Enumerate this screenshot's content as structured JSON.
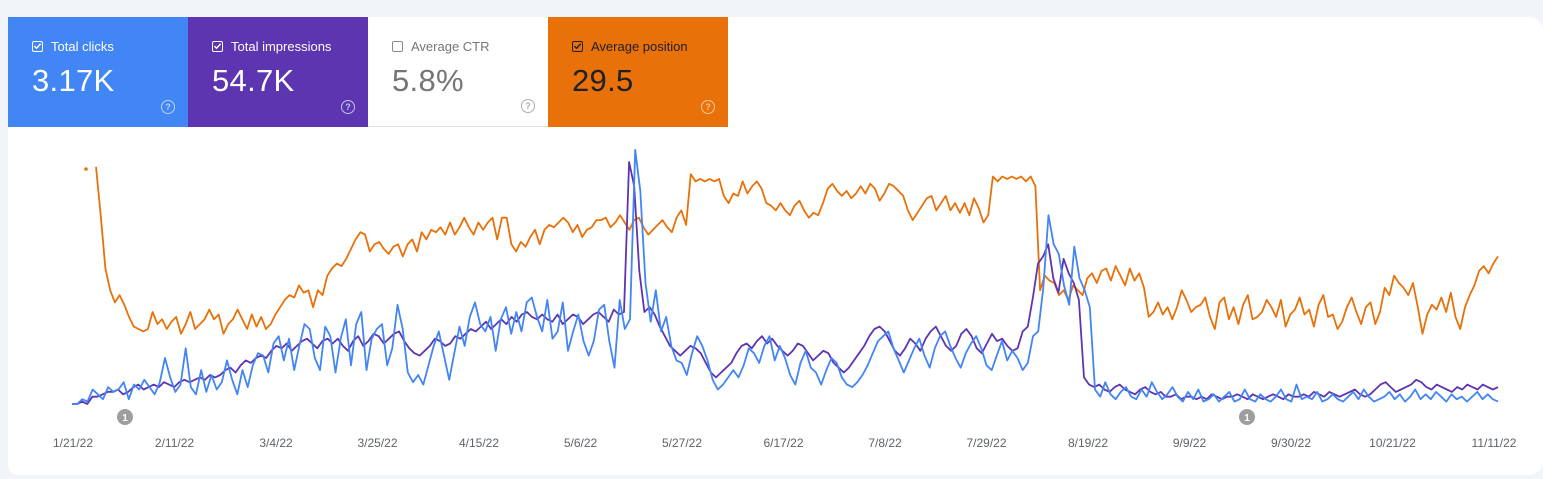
{
  "metrics": [
    {
      "label": "Total clicks",
      "value": "3.17K",
      "checked": true,
      "color": "#4285f4"
    },
    {
      "label": "Total impressions",
      "value": "54.7K",
      "checked": true,
      "color": "#5e35b1"
    },
    {
      "label": "Average CTR",
      "value": "5.8%",
      "checked": false,
      "color": "#ffffff"
    },
    {
      "label": "Average position",
      "value": "29.5",
      "checked": true,
      "color": "#e8710a"
    }
  ],
  "help_icon": "?",
  "chart_data": {
    "type": "line",
    "x_axis_labels": [
      "1/21/22",
      "2/11/22",
      "3/4/22",
      "3/25/22",
      "4/15/22",
      "5/6/22",
      "5/27/22",
      "6/17/22",
      "7/8/22",
      "7/29/22",
      "8/19/22",
      "9/9/22",
      "9/30/22",
      "10/21/22",
      "11/11/22"
    ],
    "annotations": [
      {
        "label": "1",
        "date": "1/31/22"
      },
      {
        "label": "1",
        "date": "9/14/22"
      }
    ],
    "y_axis": "hidden",
    "grid": false,
    "series": [
      {
        "name": "Average position",
        "color": "#e8710a",
        "normalized_height": [
          1.0,
          0.98,
          0.78,
          0.56,
          0.47,
          0.42,
          0.45,
          0.41,
          0.36,
          0.32,
          0.31,
          0.3,
          0.31,
          0.38,
          0.33,
          0.35,
          0.31,
          0.34,
          0.36,
          0.29,
          0.33,
          0.38,
          0.31,
          0.33,
          0.35,
          0.39,
          0.35,
          0.37,
          0.29,
          0.33,
          0.35,
          0.39,
          0.35,
          0.31,
          0.37,
          0.32,
          0.36,
          0.31,
          0.33,
          0.37,
          0.4,
          0.43,
          0.45,
          0.44,
          0.49,
          0.46,
          0.47,
          0.4,
          0.47,
          0.45,
          0.53,
          0.56,
          0.58,
          0.57,
          0.6,
          0.64,
          0.68,
          0.71,
          0.7,
          0.63,
          0.66,
          0.67,
          0.64,
          0.62,
          0.65,
          0.66,
          0.61,
          0.66,
          0.68,
          0.63,
          0.71,
          0.68,
          0.72,
          0.71,
          0.73,
          0.7,
          0.75,
          0.7,
          0.73,
          0.77,
          0.73,
          0.7,
          0.75,
          0.72,
          0.75,
          0.77,
          0.68,
          0.77,
          0.77,
          0.66,
          0.63,
          0.67,
          0.65,
          0.69,
          0.72,
          0.66,
          0.72,
          0.74,
          0.73,
          0.75,
          0.77,
          0.75,
          0.71,
          0.74,
          0.69,
          0.72,
          0.73,
          0.76,
          0.76,
          0.77,
          0.73,
          0.75,
          0.78,
          0.75,
          0.72,
          0.76,
          0.77,
          0.73,
          0.7,
          0.72,
          0.74,
          0.76,
          0.73,
          0.71,
          0.77,
          0.8,
          0.74,
          0.95,
          0.92,
          0.93,
          0.92,
          0.93,
          0.92,
          0.93,
          0.86,
          0.83,
          0.87,
          0.86,
          0.92,
          0.87,
          0.9,
          0.92,
          0.89,
          0.83,
          0.82,
          0.8,
          0.83,
          0.8,
          0.78,
          0.82,
          0.84,
          0.8,
          0.77,
          0.79,
          0.78,
          0.83,
          0.89,
          0.91,
          0.88,
          0.86,
          0.88,
          0.85,
          0.87,
          0.9,
          0.87,
          0.91,
          0.89,
          0.84,
          0.87,
          0.91,
          0.9,
          0.88,
          0.86,
          0.8,
          0.76,
          0.79,
          0.82,
          0.85,
          0.86,
          0.8,
          0.83,
          0.86,
          0.8,
          0.83,
          0.79,
          0.83,
          0.78,
          0.85,
          0.81,
          0.75,
          0.78,
          0.94,
          0.92,
          0.94,
          0.93,
          0.94,
          0.93,
          0.94,
          0.92,
          0.94,
          0.9,
          0.47,
          0.53,
          0.51,
          0.5,
          0.45,
          0.47,
          0.43,
          0.49,
          0.47,
          0.45,
          0.52,
          0.54,
          0.5,
          0.55,
          0.56,
          0.51,
          0.57,
          0.53,
          0.49,
          0.56,
          0.51,
          0.54,
          0.48,
          0.36,
          0.38,
          0.42,
          0.37,
          0.4,
          0.35,
          0.4,
          0.47,
          0.43,
          0.38,
          0.4,
          0.41,
          0.44,
          0.36,
          0.31,
          0.42,
          0.44,
          0.35,
          0.4,
          0.33,
          0.41,
          0.45,
          0.35,
          0.36,
          0.38,
          0.43,
          0.4,
          0.36,
          0.43,
          0.32,
          0.37,
          0.39,
          0.44,
          0.37,
          0.39,
          0.32,
          0.41,
          0.45,
          0.36,
          0.37,
          0.31,
          0.34,
          0.4,
          0.44,
          0.38,
          0.33,
          0.4,
          0.42,
          0.33,
          0.38,
          0.48,
          0.45,
          0.53,
          0.5,
          0.48,
          0.45,
          0.5,
          0.4,
          0.29,
          0.37,
          0.41,
          0.39,
          0.44,
          0.38,
          0.46,
          0.36,
          0.31,
          0.4,
          0.45,
          0.49,
          0.55,
          0.57,
          0.54,
          0.58,
          0.61
        ]
      },
      {
        "name": "Total impressions",
        "color": "#5e35b1",
        "normalized_height": [
          0.0,
          0.0,
          0.01,
          0.0,
          0.03,
          0.03,
          0.04,
          0.05,
          0.05,
          0.06,
          0.04,
          0.05,
          0.07,
          0.08,
          0.06,
          0.07,
          0.08,
          0.07,
          0.09,
          0.08,
          0.07,
          0.09,
          0.1,
          0.09,
          0.1,
          0.11,
          0.1,
          0.12,
          0.11,
          0.12,
          0.14,
          0.15,
          0.13,
          0.16,
          0.18,
          0.17,
          0.19,
          0.2,
          0.19,
          0.22,
          0.24,
          0.23,
          0.25,
          0.22,
          0.24,
          0.26,
          0.27,
          0.25,
          0.23,
          0.26,
          0.27,
          0.25,
          0.27,
          0.24,
          0.22,
          0.26,
          0.28,
          0.24,
          0.26,
          0.29,
          0.28,
          0.25,
          0.27,
          0.29,
          0.3,
          0.26,
          0.23,
          0.21,
          0.2,
          0.22,
          0.24,
          0.27,
          0.26,
          0.24,
          0.25,
          0.28,
          0.27,
          0.29,
          0.31,
          0.3,
          0.32,
          0.34,
          0.31,
          0.33,
          0.35,
          0.33,
          0.36,
          0.34,
          0.37,
          0.38,
          0.36,
          0.35,
          0.37,
          0.35,
          0.34,
          0.37,
          0.33,
          0.35,
          0.37,
          0.36,
          0.33,
          0.35,
          0.37,
          0.38,
          0.36,
          0.34,
          0.39,
          0.37,
          0.38,
          1.0,
          0.9,
          0.55,
          0.38,
          0.4,
          0.37,
          0.32,
          0.28,
          0.24,
          0.22,
          0.2,
          0.22,
          0.24,
          0.23,
          0.21,
          0.17,
          0.13,
          0.11,
          0.13,
          0.15,
          0.17,
          0.21,
          0.24,
          0.25,
          0.23,
          0.26,
          0.28,
          0.25,
          0.27,
          0.24,
          0.22,
          0.2,
          0.22,
          0.25,
          0.24,
          0.21,
          0.18,
          0.2,
          0.22,
          0.21,
          0.17,
          0.15,
          0.13,
          0.15,
          0.18,
          0.21,
          0.24,
          0.28,
          0.31,
          0.32,
          0.3,
          0.26,
          0.22,
          0.2,
          0.23,
          0.27,
          0.25,
          0.22,
          0.27,
          0.3,
          0.32,
          0.28,
          0.24,
          0.22,
          0.24,
          0.29,
          0.31,
          0.28,
          0.23,
          0.21,
          0.25,
          0.29,
          0.26,
          0.27,
          0.24,
          0.22,
          0.23,
          0.3,
          0.32,
          0.44,
          0.58,
          0.61,
          0.66,
          0.52,
          0.46,
          0.6,
          0.54,
          0.5,
          0.43,
          0.11,
          0.08,
          0.07,
          0.08,
          0.06,
          0.05,
          0.07,
          0.08,
          0.06,
          0.05,
          0.04,
          0.06,
          0.07,
          0.05,
          0.04,
          0.05,
          0.03,
          0.03,
          0.04,
          0.02,
          0.03,
          0.03,
          0.02,
          0.03,
          0.02,
          0.04,
          0.03,
          0.02,
          0.03,
          0.03,
          0.04,
          0.03,
          0.02,
          0.04,
          0.03,
          0.02,
          0.03,
          0.04,
          0.03,
          0.02,
          0.04,
          0.03,
          0.03,
          0.04,
          0.03,
          0.05,
          0.04,
          0.03,
          0.05,
          0.04,
          0.03,
          0.04,
          0.05,
          0.06,
          0.04,
          0.03,
          0.04,
          0.06,
          0.08,
          0.09,
          0.07,
          0.05,
          0.06,
          0.07,
          0.08,
          0.1,
          0.09,
          0.07,
          0.06,
          0.08,
          0.07,
          0.06,
          0.05,
          0.07,
          0.06,
          0.08,
          0.07,
          0.06,
          0.08,
          0.07,
          0.06,
          0.07
        ]
      },
      {
        "name": "Total clicks",
        "color": "#4285f4",
        "normalized_height": [
          0.0,
          0.0,
          0.02,
          0.01,
          0.06,
          0.04,
          0.02,
          0.07,
          0.05,
          0.06,
          0.09,
          0.02,
          0.08,
          0.06,
          0.1,
          0.07,
          0.04,
          0.09,
          0.19,
          0.11,
          0.05,
          0.08,
          0.23,
          0.07,
          0.04,
          0.14,
          0.05,
          0.12,
          0.06,
          0.09,
          0.18,
          0.1,
          0.04,
          0.14,
          0.07,
          0.16,
          0.21,
          0.2,
          0.13,
          0.25,
          0.28,
          0.18,
          0.27,
          0.14,
          0.24,
          0.33,
          0.31,
          0.19,
          0.14,
          0.32,
          0.28,
          0.13,
          0.27,
          0.35,
          0.16,
          0.33,
          0.38,
          0.14,
          0.27,
          0.31,
          0.33,
          0.16,
          0.23,
          0.41,
          0.31,
          0.13,
          0.09,
          0.12,
          0.08,
          0.16,
          0.24,
          0.3,
          0.2,
          0.1,
          0.21,
          0.32,
          0.24,
          0.36,
          0.42,
          0.33,
          0.3,
          0.36,
          0.22,
          0.35,
          0.4,
          0.29,
          0.38,
          0.3,
          0.42,
          0.44,
          0.36,
          0.3,
          0.43,
          0.27,
          0.3,
          0.42,
          0.22,
          0.3,
          0.37,
          0.26,
          0.2,
          0.26,
          0.39,
          0.41,
          0.26,
          0.15,
          0.43,
          0.31,
          0.35,
          1.05,
          0.88,
          0.5,
          0.34,
          0.47,
          0.3,
          0.36,
          0.24,
          0.18,
          0.17,
          0.12,
          0.21,
          0.28,
          0.24,
          0.18,
          0.1,
          0.06,
          0.08,
          0.11,
          0.14,
          0.11,
          0.16,
          0.23,
          0.21,
          0.17,
          0.24,
          0.28,
          0.18,
          0.24,
          0.19,
          0.12,
          0.08,
          0.17,
          0.22,
          0.15,
          0.13,
          0.08,
          0.14,
          0.19,
          0.17,
          0.11,
          0.08,
          0.07,
          0.09,
          0.12,
          0.16,
          0.21,
          0.26,
          0.28,
          0.3,
          0.23,
          0.18,
          0.13,
          0.18,
          0.23,
          0.27,
          0.2,
          0.15,
          0.23,
          0.28,
          0.3,
          0.24,
          0.19,
          0.15,
          0.21,
          0.25,
          0.28,
          0.23,
          0.16,
          0.14,
          0.2,
          0.26,
          0.18,
          0.22,
          0.19,
          0.14,
          0.17,
          0.28,
          0.3,
          0.48,
          0.78,
          0.66,
          0.62,
          0.49,
          0.41,
          0.65,
          0.52,
          0.47,
          0.4,
          0.06,
          0.03,
          0.09,
          0.04,
          0.02,
          0.05,
          0.07,
          0.03,
          0.02,
          0.06,
          0.03,
          0.09,
          0.05,
          0.02,
          0.04,
          0.07,
          0.03,
          0.01,
          0.05,
          0.02,
          0.06,
          0.01,
          0.02,
          0.04,
          0.01,
          0.03,
          0.05,
          0.01,
          0.02,
          0.06,
          0.02,
          0.01,
          0.04,
          0.02,
          0.01,
          0.03,
          0.06,
          0.02,
          0.01,
          0.08,
          0.02,
          0.03,
          0.02,
          0.05,
          0.01,
          0.02,
          0.04,
          0.02,
          0.01,
          0.03,
          0.05,
          0.02,
          0.06,
          0.03,
          0.01,
          0.02,
          0.03,
          0.05,
          0.02,
          0.04,
          0.01,
          0.03,
          0.06,
          0.02,
          0.04,
          0.02,
          0.05,
          0.03,
          0.01,
          0.04,
          0.02,
          0.03,
          0.01,
          0.03,
          0.05,
          0.02,
          0.04,
          0.02,
          0.01
        ]
      }
    ]
  }
}
